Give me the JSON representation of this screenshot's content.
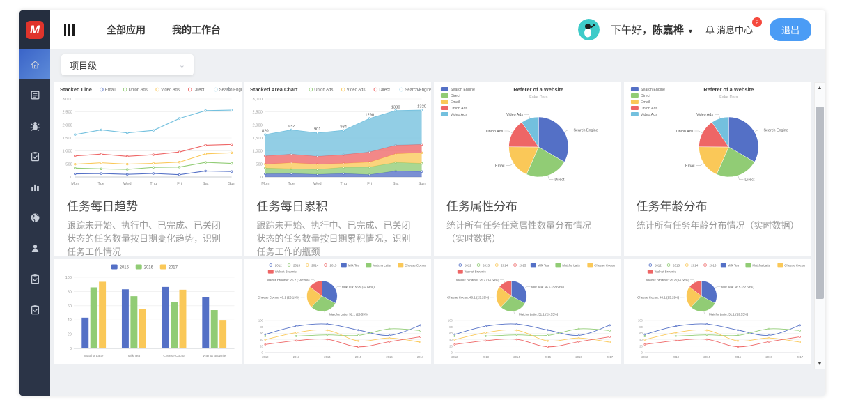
{
  "header": {
    "logo_letter": "M",
    "nav": [
      {
        "label": "全部应用"
      },
      {
        "label": "我的工作台"
      }
    ],
    "greeting_prefix": "下午好，",
    "user_name": "陈嘉桦",
    "message_center_label": "消息中心",
    "message_badge": "2",
    "logout_label": "退出"
  },
  "sidebar": {
    "items": [
      {
        "icon": "home-icon",
        "active": true
      },
      {
        "icon": "document-icon",
        "active": false
      },
      {
        "icon": "bug-icon",
        "active": false
      },
      {
        "icon": "clipboard-check-icon",
        "active": false
      },
      {
        "icon": "bar-chart-icon",
        "active": false
      },
      {
        "icon": "globe-icon",
        "active": false
      },
      {
        "icon": "user-icon",
        "active": false
      },
      {
        "icon": "clipboard-check-icon",
        "active": false
      },
      {
        "icon": "clipboard-check-icon",
        "active": false
      }
    ]
  },
  "filter": {
    "value": "项目级",
    "icon": "chevron-down-icon"
  },
  "cards": [
    {
      "title": "任务每日趋势",
      "description": "跟踪未开始、执行中、已完成、已关闭状态的任务数量按日期变化趋势，识别任务工作情况"
    },
    {
      "title": "任务每日累积",
      "description": "跟踪未开始、执行中、已完成、已关闭状态的任务数量按日期累积情况，识别任务工作的瓶颈"
    },
    {
      "title": "任务属性分布",
      "description": "统计所有任务任意属性数量分布情况（实时数据）"
    },
    {
      "title": "任务年龄分布",
      "description": "统计所有任务年龄分布情况（实时数据）"
    }
  ],
  "colors": {
    "palette": [
      "#5470c6",
      "#91cc75",
      "#fac858",
      "#ee6666",
      "#73c0de"
    ],
    "accent_blue": "#4b9cf5",
    "badge_red": "#f5483d",
    "sidebar_bg": "#2b3447",
    "avatar_teal": "#3ecbc9",
    "logo_red": "#e0342c"
  },
  "chart_data": {
    "slots": [
      "stackedLine",
      "stackedArea",
      "refererPie",
      "refererPie",
      "barYears",
      "pieLineCombo",
      "pieLineCombo",
      "pieLineCombo"
    ],
    "defs": {
      "stackedLine": {
        "type": "stacked-line",
        "title": "Stacked Line",
        "legend": [
          "Email",
          "Union Ads",
          "Video Ads",
          "Direct",
          "Search Engine"
        ],
        "x": [
          "Mon",
          "Tue",
          "Wed",
          "Thu",
          "Fri",
          "Sat",
          "Sun"
        ],
        "series": [
          {
            "name": "Email",
            "values": [
              120,
              132,
              101,
              134,
              90,
              230,
              210
            ]
          },
          {
            "name": "Union Ads",
            "values": [
              220,
              182,
              191,
              234,
              290,
              330,
              310
            ]
          },
          {
            "name": "Video Ads",
            "values": [
              150,
              232,
              201,
              154,
              190,
              330,
              410
            ]
          },
          {
            "name": "Direct",
            "values": [
              320,
              332,
              301,
              334,
              390,
              330,
              320
            ]
          },
          {
            "name": "Search Engine",
            "values": [
              820,
              932,
              901,
              934,
              1290,
              1330,
              1320
            ]
          }
        ],
        "stacked": true,
        "ylim": [
          0,
          3000
        ],
        "yticks": [
          0,
          500,
          1000,
          1500,
          2000,
          2500,
          3000
        ],
        "download_icon": true
      },
      "stackedArea": {
        "type": "stacked-area",
        "title": "Stacked Area Chart",
        "legend": [
          "Union Ads",
          "Video Ads",
          "Direct",
          "Search Engine"
        ],
        "x": [
          "Mon",
          "Tue",
          "Wed",
          "Thu",
          "Fri",
          "Sat",
          "Sun"
        ],
        "series": [
          {
            "name": "Email",
            "values": [
              120,
              132,
              101,
              134,
              90,
              230,
              210
            ]
          },
          {
            "name": "Union Ads",
            "values": [
              220,
              182,
              191,
              234,
              290,
              330,
              310
            ]
          },
          {
            "name": "Video Ads",
            "values": [
              150,
              232,
              201,
              154,
              190,
              330,
              410
            ]
          },
          {
            "name": "Direct",
            "values": [
              320,
              332,
              301,
              334,
              390,
              330,
              320
            ]
          },
          {
            "name": "Search Engine",
            "values": [
              820,
              932,
              901,
              934,
              1290,
              1330,
              1320
            ]
          }
        ],
        "stacked": true,
        "ylim": [
          0,
          3000
        ],
        "yticks": [
          0,
          500,
          1000,
          1500,
          2000,
          2500,
          3000
        ],
        "top_labels": [
          820,
          932,
          901,
          934,
          1290,
          1330,
          1320
        ],
        "download_icon": true
      },
      "refererPie": {
        "type": "pie",
        "title": "Referer of a Website",
        "subtitle": "Fake Data",
        "legend": [
          "Search Engine",
          "Direct",
          "Email",
          "Union Ads",
          "Video Ads"
        ],
        "values": [
          {
            "name": "Search Engine",
            "value": 1048
          },
          {
            "name": "Direct",
            "value": 735
          },
          {
            "name": "Email",
            "value": 580
          },
          {
            "name": "Union Ads",
            "value": 484
          },
          {
            "name": "Video Ads",
            "value": 300
          }
        ]
      },
      "barYears": {
        "type": "bar",
        "legend": [
          "2015",
          "2016",
          "2017"
        ],
        "categories": [
          "Matcha Latte",
          "Milk Tea",
          "Cheese Cocoa",
          "Walnut Brownie"
        ],
        "series": [
          {
            "name": "2015",
            "values": [
              43.3,
              83.1,
              86.4,
              72.4
            ]
          },
          {
            "name": "2016",
            "values": [
              85.8,
              73.4,
              65.2,
              53.9
            ]
          },
          {
            "name": "2017",
            "values": [
              93.7,
              55.1,
              82.5,
              39.1
            ]
          }
        ],
        "ylim": [
          0,
          100
        ],
        "yticks": [
          0,
          20,
          40,
          60,
          80,
          100
        ]
      },
      "pieLineCombo": {
        "type": "pie-line",
        "legend_lines": [
          "2012",
          "2013",
          "2014",
          "2015"
        ],
        "legend_rects": [
          "Milk Tea",
          "Matcha Latte",
          "Cheese Cocoa",
          "Walnut Brownie"
        ],
        "pie": [
          {
            "name": "Milk Tea",
            "value": 56.5,
            "pct": "32.68%"
          },
          {
            "name": "Matcha Latte",
            "value": 51.1,
            "pct": "29.55%"
          },
          {
            "name": "Cheese Cocoa",
            "value": 40.1,
            "pct": "23.19%"
          },
          {
            "name": "Walnut Brownie",
            "value": 25.2,
            "pct": "14.58%"
          }
        ],
        "x": [
          "2012",
          "2013",
          "2014",
          "2015",
          "2016",
          "2017"
        ],
        "series": [
          {
            "name": "Milk Tea",
            "values": [
              56.5,
              82.1,
              88.7,
              70.1,
              53.4,
              85.1
            ]
          },
          {
            "name": "Matcha Latte",
            "values": [
              51.1,
              51.4,
              55.1,
              53.3,
              73.8,
              68.7
            ]
          },
          {
            "name": "Cheese Cocoa",
            "values": [
              40.1,
              62.2,
              69.5,
              36.4,
              45.2,
              32.5
            ]
          },
          {
            "name": "Walnut Brownie",
            "values": [
              25.2,
              37.1,
              41.2,
              18,
              33.9,
              49.1
            ]
          }
        ],
        "ylim": [
          0,
          100
        ],
        "yticks": [
          0,
          20,
          40,
          60,
          80,
          100
        ]
      }
    }
  }
}
